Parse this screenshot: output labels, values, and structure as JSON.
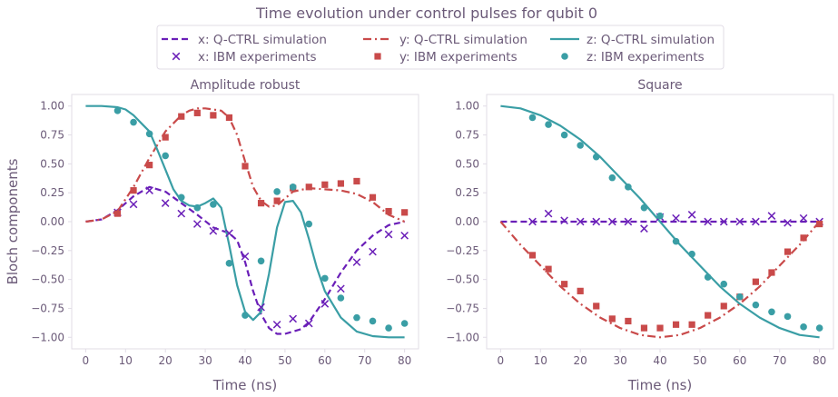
{
  "figure": {
    "suptitle": "Time evolution under control pulses for qubit 0"
  },
  "colors": {
    "x": "#6a1fb8",
    "y": "#c94a4a",
    "z": "#3a9ea5",
    "text": "#6b5a78",
    "frame": "#e1dce6"
  },
  "legend": {
    "placement": "top-center",
    "entries": [
      {
        "key": "x_sim",
        "label": "x: Q-CTRL simulation",
        "style": "dashed",
        "color": "x"
      },
      {
        "key": "y_sim",
        "label": "y: Q-CTRL simulation",
        "style": "dashdot",
        "color": "y"
      },
      {
        "key": "z_sim",
        "label": "z: Q-CTRL simulation",
        "style": "solid",
        "color": "z"
      },
      {
        "key": "x_exp",
        "label": "x: IBM experiments",
        "style": "x-marker",
        "color": "x"
      },
      {
        "key": "y_exp",
        "label": "y: IBM experiments",
        "style": "square-marker",
        "color": "y"
      },
      {
        "key": "z_exp",
        "label": "z: IBM experiments",
        "style": "circle-marker",
        "color": "z"
      }
    ]
  },
  "chart_data": [
    {
      "type": "line",
      "title": "Amplitude robust",
      "xlabel": "Time (ns)",
      "ylabel": "Bloch components",
      "xlim": [
        -3.5,
        83.5
      ],
      "ylim": [
        -1.1,
        1.1
      ],
      "xticks": [
        0,
        10,
        20,
        30,
        40,
        50,
        60,
        70,
        80
      ],
      "yticks": [
        1.0,
        0.75,
        0.5,
        0.25,
        0.0,
        -0.25,
        -0.5,
        -0.75,
        -1.0
      ],
      "ytick_labels": [
        "1.00",
        "0.75",
        "0.50",
        "0.25",
        "0.00",
        "−0.25",
        "−0.50",
        "−0.75",
        "−1.00"
      ],
      "grid": false,
      "series": [
        {
          "name": "x: Q-CTRL simulation",
          "kind": "line",
          "dash": "dashed",
          "color": "x",
          "x": [
            0,
            4,
            8,
            12,
            16,
            20,
            24,
            28,
            32,
            36,
            38,
            40,
            42,
            44,
            46,
            48,
            50,
            52,
            54,
            56,
            60,
            64,
            68,
            72,
            76,
            80
          ],
          "y": [
            0.0,
            0.02,
            0.1,
            0.22,
            0.3,
            0.26,
            0.16,
            0.06,
            -0.05,
            -0.1,
            -0.16,
            -0.35,
            -0.6,
            -0.8,
            -0.92,
            -0.97,
            -0.97,
            -0.95,
            -0.93,
            -0.87,
            -0.67,
            -0.44,
            -0.25,
            -0.12,
            -0.03,
            0.0
          ]
        },
        {
          "name": "y: Q-CTRL simulation",
          "kind": "line",
          "dash": "dashdot",
          "color": "y",
          "x": [
            0,
            4,
            8,
            12,
            16,
            20,
            24,
            26,
            28,
            30,
            34,
            36,
            38,
            40,
            42,
            44,
            46,
            48,
            50,
            52,
            56,
            60,
            64,
            68,
            72,
            76,
            80
          ],
          "y": [
            0.0,
            0.02,
            0.09,
            0.3,
            0.55,
            0.78,
            0.92,
            0.96,
            0.98,
            0.98,
            0.96,
            0.9,
            0.75,
            0.52,
            0.3,
            0.18,
            0.13,
            0.14,
            0.2,
            0.26,
            0.29,
            0.28,
            0.27,
            0.24,
            0.17,
            0.06,
            0.0
          ]
        },
        {
          "name": "z: Q-CTRL simulation",
          "kind": "line",
          "dash": "solid",
          "color": "z",
          "x": [
            0,
            4,
            8,
            10,
            12,
            14,
            16,
            18,
            20,
            22,
            24,
            26,
            28,
            30,
            32,
            34,
            36,
            38,
            40,
            42,
            44,
            46,
            48,
            50,
            52,
            54,
            56,
            58,
            60,
            64,
            68,
            72,
            76,
            80
          ],
          "y": [
            1.0,
            1.0,
            0.99,
            0.97,
            0.92,
            0.85,
            0.78,
            0.62,
            0.45,
            0.28,
            0.18,
            0.14,
            0.13,
            0.16,
            0.2,
            0.12,
            -0.2,
            -0.55,
            -0.78,
            -0.85,
            -0.78,
            -0.45,
            -0.05,
            0.17,
            0.18,
            0.08,
            -0.15,
            -0.4,
            -0.6,
            -0.83,
            -0.95,
            -0.99,
            -1.0,
            -1.0
          ]
        },
        {
          "name": "x: IBM experiments",
          "kind": "scatter",
          "marker": "x",
          "color": "x",
          "x": [
            8,
            12,
            16,
            20,
            24,
            28,
            32,
            36,
            40,
            44,
            48,
            52,
            56,
            60,
            64,
            68,
            72,
            76,
            80
          ],
          "y": [
            0.08,
            0.15,
            0.27,
            0.16,
            0.07,
            -0.02,
            -0.08,
            -0.1,
            -0.3,
            -0.74,
            -0.89,
            -0.84,
            -0.88,
            -0.71,
            -0.58,
            -0.35,
            -0.26,
            -0.11,
            -0.12
          ]
        },
        {
          "name": "y: IBM experiments",
          "kind": "scatter",
          "marker": "square",
          "color": "y",
          "x": [
            8,
            12,
            16,
            20,
            24,
            28,
            32,
            36,
            40,
            44,
            48,
            52,
            56,
            60,
            64,
            68,
            72,
            76,
            80
          ],
          "y": [
            0.07,
            0.27,
            0.49,
            0.73,
            0.91,
            0.94,
            0.92,
            0.9,
            0.48,
            0.16,
            0.18,
            0.29,
            0.3,
            0.32,
            0.33,
            0.35,
            0.21,
            0.09,
            0.08
          ]
        },
        {
          "name": "z: IBM experiments",
          "kind": "scatter",
          "marker": "circle",
          "color": "z",
          "x": [
            8,
            12,
            16,
            20,
            24,
            28,
            32,
            36,
            40,
            44,
            48,
            52,
            56,
            60,
            64,
            68,
            72,
            76,
            80
          ],
          "y": [
            0.96,
            0.86,
            0.76,
            0.57,
            0.21,
            0.12,
            0.15,
            -0.36,
            -0.81,
            -0.34,
            0.26,
            0.3,
            -0.02,
            -0.49,
            -0.66,
            -0.83,
            -0.86,
            -0.92,
            -0.88
          ]
        }
      ]
    },
    {
      "type": "line",
      "title": "Square",
      "xlabel": "Time (ns)",
      "ylabel": "",
      "xlim": [
        -3.5,
        83.5
      ],
      "ylim": [
        -1.1,
        1.1
      ],
      "xticks": [
        0,
        10,
        20,
        30,
        40,
        50,
        60,
        70,
        80
      ],
      "yticks": [
        1.0,
        0.75,
        0.5,
        0.25,
        0.0,
        -0.25,
        -0.5,
        -0.75,
        -1.0
      ],
      "ytick_labels": [
        "1.00",
        "0.75",
        "0.50",
        "0.25",
        "0.00",
        "−0.25",
        "−0.50",
        "−0.75",
        "−1.00"
      ],
      "grid": false,
      "series": [
        {
          "name": "x: Q-CTRL simulation",
          "kind": "line",
          "dash": "dashed",
          "color": "x",
          "x": [
            0,
            80
          ],
          "y": [
            0.0,
            0.0
          ]
        },
        {
          "name": "y: Q-CTRL simulation",
          "kind": "line",
          "dash": "dashdot",
          "color": "y",
          "x": [
            0,
            5,
            10,
            15,
            20,
            25,
            30,
            35,
            40,
            45,
            50,
            55,
            60,
            65,
            70,
            75,
            80
          ],
          "y": [
            0.0,
            -0.2,
            -0.38,
            -0.56,
            -0.71,
            -0.83,
            -0.92,
            -0.98,
            -1.0,
            -0.98,
            -0.92,
            -0.83,
            -0.71,
            -0.56,
            -0.38,
            -0.2,
            0.0
          ]
        },
        {
          "name": "z: Q-CTRL simulation",
          "kind": "line",
          "dash": "solid",
          "color": "z",
          "x": [
            0,
            5,
            10,
            15,
            20,
            25,
            30,
            35,
            40,
            45,
            50,
            55,
            60,
            65,
            70,
            75,
            80
          ],
          "y": [
            1.0,
            0.98,
            0.92,
            0.83,
            0.71,
            0.56,
            0.38,
            0.2,
            0.0,
            -0.2,
            -0.38,
            -0.56,
            -0.71,
            -0.83,
            -0.92,
            -0.98,
            -1.0
          ]
        },
        {
          "name": "x: IBM experiments",
          "kind": "scatter",
          "marker": "x",
          "color": "x",
          "x": [
            8,
            12,
            16,
            20,
            24,
            28,
            32,
            36,
            40,
            44,
            48,
            52,
            56,
            60,
            64,
            68,
            72,
            76,
            80
          ],
          "y": [
            0.0,
            0.07,
            0.01,
            0.0,
            0.0,
            0.0,
            0.0,
            -0.06,
            0.04,
            0.03,
            0.06,
            0.0,
            0.0,
            0.0,
            0.0,
            0.05,
            -0.01,
            0.03,
            0.0
          ]
        },
        {
          "name": "y: IBM experiments",
          "kind": "scatter",
          "marker": "square",
          "color": "y",
          "x": [
            8,
            12,
            16,
            20,
            24,
            28,
            32,
            36,
            40,
            44,
            48,
            52,
            56,
            60,
            64,
            68,
            72,
            76,
            80
          ],
          "y": [
            -0.29,
            -0.41,
            -0.54,
            -0.6,
            -0.73,
            -0.84,
            -0.86,
            -0.92,
            -0.92,
            -0.89,
            -0.89,
            -0.81,
            -0.73,
            -0.65,
            -0.52,
            -0.44,
            -0.26,
            -0.14,
            -0.02
          ]
        },
        {
          "name": "z: IBM experiments",
          "kind": "scatter",
          "marker": "circle",
          "color": "z",
          "x": [
            8,
            12,
            16,
            20,
            24,
            28,
            32,
            36,
            40,
            44,
            48,
            52,
            56,
            60,
            64,
            68,
            72,
            76,
            80
          ],
          "y": [
            0.9,
            0.84,
            0.75,
            0.66,
            0.56,
            0.38,
            0.3,
            0.12,
            0.05,
            -0.17,
            -0.28,
            -0.48,
            -0.54,
            -0.65,
            -0.72,
            -0.78,
            -0.82,
            -0.91,
            -0.92
          ]
        }
      ]
    }
  ]
}
